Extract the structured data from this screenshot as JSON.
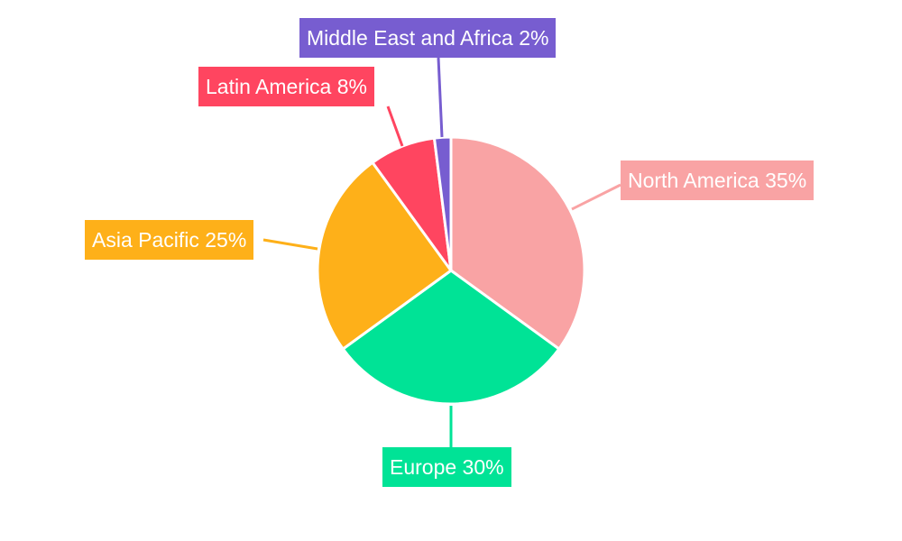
{
  "chart_data": {
    "type": "pie",
    "categories": [
      "North America",
      "Europe",
      "Asia Pacific",
      "Latin America",
      "Middle East and Africa"
    ],
    "values": [
      35,
      30,
      25,
      8,
      2
    ],
    "unit": "%",
    "colors": [
      "#F9A3A4",
      "#00E396",
      "#FEB019",
      "#FF4560",
      "#775DD0"
    ],
    "start_angle": "top, clockwise",
    "legend": "none",
    "data_labels": "outside with leader lines"
  }
}
